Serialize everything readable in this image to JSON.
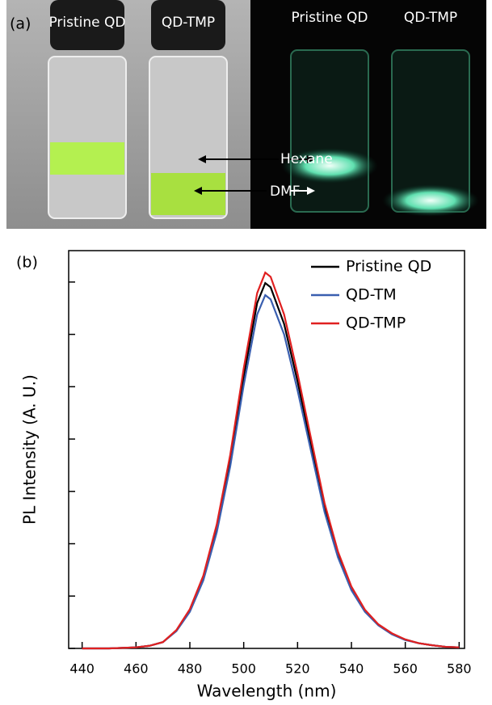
{
  "panel_a": {
    "label": "(a)",
    "left_vial_1": "Pristine QD",
    "left_vial_2": "QD-TMP",
    "right_vial_1": "Pristine QD",
    "right_vial_2": "QD-TMP",
    "hexane": "Hexane",
    "dmf": "DMF"
  },
  "chart_data": {
    "type": "line",
    "panel_label": "(b)",
    "xlabel": "Wavelength (nm)",
    "ylabel": "PL Intensity (A. U.)",
    "x": [
      440,
      445,
      450,
      455,
      460,
      465,
      470,
      475,
      480,
      485,
      490,
      495,
      500,
      505,
      508,
      510,
      515,
      520,
      525,
      530,
      535,
      540,
      545,
      550,
      555,
      560,
      565,
      570,
      575,
      580
    ],
    "series": [
      {
        "name": "Pristine QD",
        "color": "#000000",
        "values": [
          0,
          0,
          0,
          0.01,
          0.02,
          0.05,
          0.12,
          0.34,
          0.73,
          1.35,
          2.3,
          3.6,
          5.2,
          6.6,
          6.98,
          6.9,
          6.2,
          5.1,
          3.9,
          2.7,
          1.8,
          1.15,
          0.72,
          0.45,
          0.28,
          0.17,
          0.1,
          0.06,
          0.03,
          0.02
        ]
      },
      {
        "name": "QD-TM",
        "color": "#3a5fb0",
        "values": [
          0,
          0,
          0,
          0.01,
          0.02,
          0.05,
          0.12,
          0.33,
          0.7,
          1.3,
          2.22,
          3.48,
          5.03,
          6.38,
          6.75,
          6.67,
          6.0,
          4.93,
          3.77,
          2.61,
          1.74,
          1.11,
          0.7,
          0.44,
          0.27,
          0.16,
          0.1,
          0.06,
          0.03,
          0.02
        ]
      },
      {
        "name": "QD-TMP",
        "color": "#e02020",
        "values": [
          0,
          0,
          0,
          0.01,
          0.02,
          0.05,
          0.12,
          0.35,
          0.75,
          1.39,
          2.37,
          3.7,
          5.35,
          6.79,
          7.18,
          7.1,
          6.38,
          5.25,
          4.01,
          2.78,
          1.85,
          1.18,
          0.74,
          0.46,
          0.29,
          0.17,
          0.1,
          0.06,
          0.03,
          0.02
        ]
      }
    ],
    "xlim": [
      435,
      582
    ],
    "xticks": [
      440,
      460,
      480,
      500,
      520,
      540,
      560,
      580
    ],
    "ylim": [
      0,
      7.6
    ],
    "yticks": [
      0,
      1,
      2,
      3,
      4,
      5,
      6,
      7
    ],
    "legend": "upper right"
  }
}
